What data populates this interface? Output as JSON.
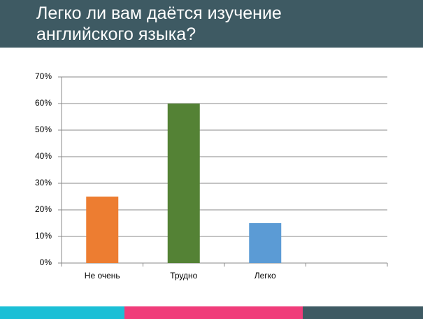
{
  "chart_data": {
    "type": "bar",
    "title": "Легко ли вам даётся изучение английского языка?",
    "categories": [
      "Не очень",
      "Трудно",
      "Легко",
      null
    ],
    "values": [
      25,
      60,
      15,
      null
    ],
    "colors": [
      "#ed7d31",
      "#548235",
      "#5b9bd5",
      null
    ],
    "ylim": [
      0,
      70
    ],
    "yticks": [
      {
        "value": 0,
        "label": "0%"
      },
      {
        "value": 10,
        "label": "10%"
      },
      {
        "value": 20,
        "label": "20%"
      },
      {
        "value": 30,
        "label": "30%"
      },
      {
        "value": 40,
        "label": "40%"
      },
      {
        "value": 50,
        "label": "50%"
      },
      {
        "value": 60,
        "label": "60%"
      },
      {
        "value": 70,
        "label": "70%"
      }
    ],
    "grid": true
  }
}
